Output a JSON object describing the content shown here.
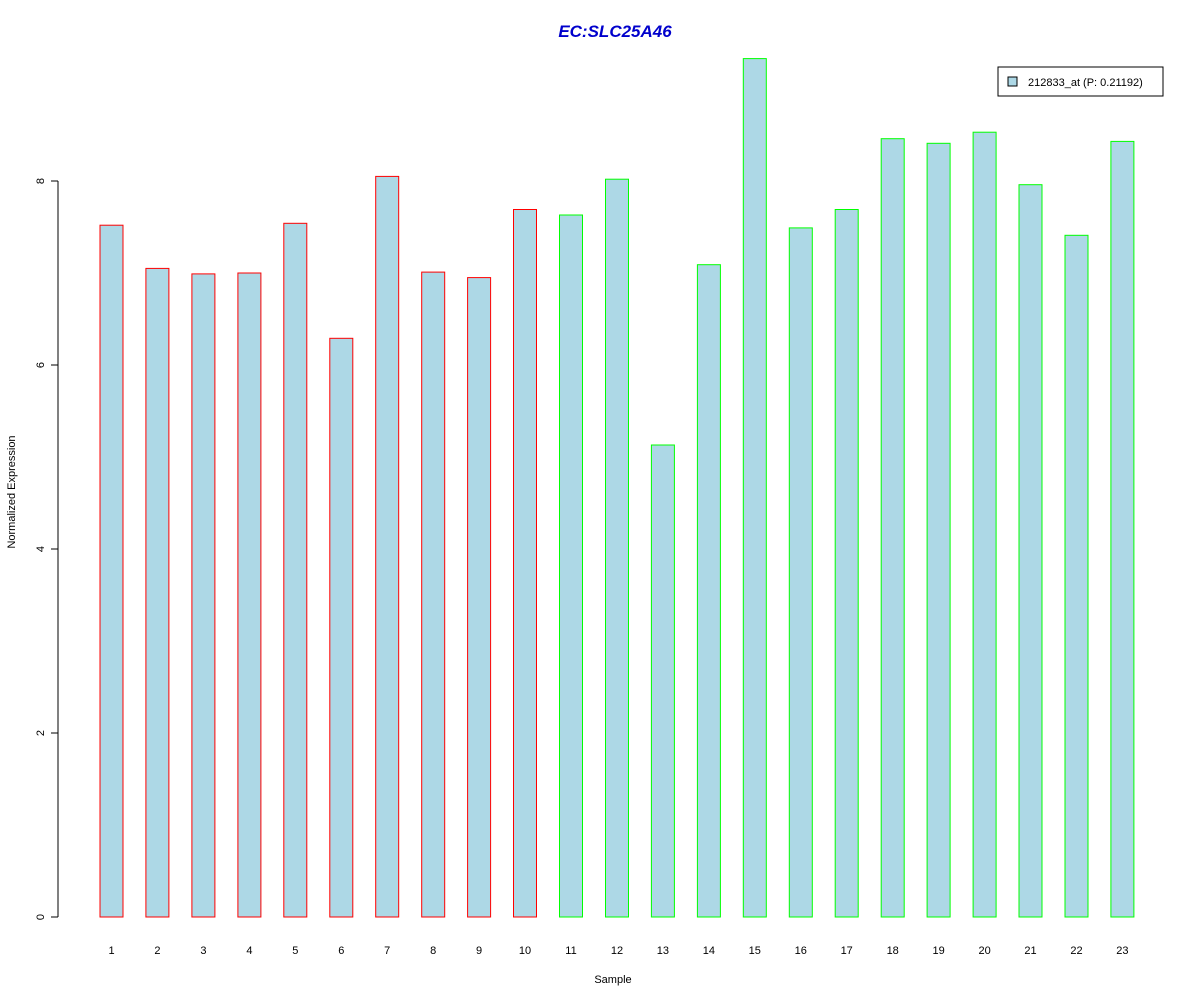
{
  "chart_data": {
    "type": "bar",
    "title": "EC:SLC25A46",
    "title_color": "#0000cc",
    "xlabel": "Sample",
    "ylabel": "Normalized Expression",
    "categories": [
      "1",
      "2",
      "3",
      "4",
      "5",
      "6",
      "7",
      "8",
      "9",
      "10",
      "11",
      "12",
      "13",
      "14",
      "15",
      "16",
      "17",
      "18",
      "19",
      "20",
      "21",
      "22",
      "23"
    ],
    "series": [
      {
        "name": "212833_at (P: 0.21192)",
        "values": [
          7.52,
          7.05,
          6.99,
          7.0,
          7.54,
          6.29,
          8.05,
          7.01,
          6.95,
          7.69,
          7.63,
          8.02,
          5.13,
          7.09,
          9.33,
          7.49,
          7.69,
          8.46,
          8.41,
          8.53,
          7.96,
          7.41,
          8.43
        ]
      }
    ],
    "group_outline": [
      "red",
      "red",
      "red",
      "red",
      "red",
      "red",
      "red",
      "red",
      "red",
      "red",
      "green",
      "green",
      "green",
      "green",
      "green",
      "green",
      "green",
      "green",
      "green",
      "green",
      "green",
      "green",
      "green"
    ],
    "colors": {
      "fill": "#add8e6",
      "red": "#ff0000",
      "green": "#00ff00"
    },
    "yticks": [
      "0",
      "2",
      "4",
      "6",
      "8"
    ],
    "ylim": [
      0,
      9.6
    ],
    "grid": false,
    "legend_position": "top-right"
  }
}
